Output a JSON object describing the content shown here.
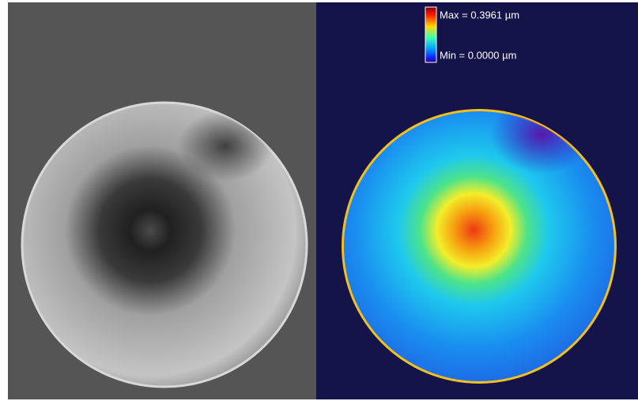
{
  "legend": {
    "max": "Max = 0.3961 µm",
    "min": "Min = 0.0000 µm"
  }
}
